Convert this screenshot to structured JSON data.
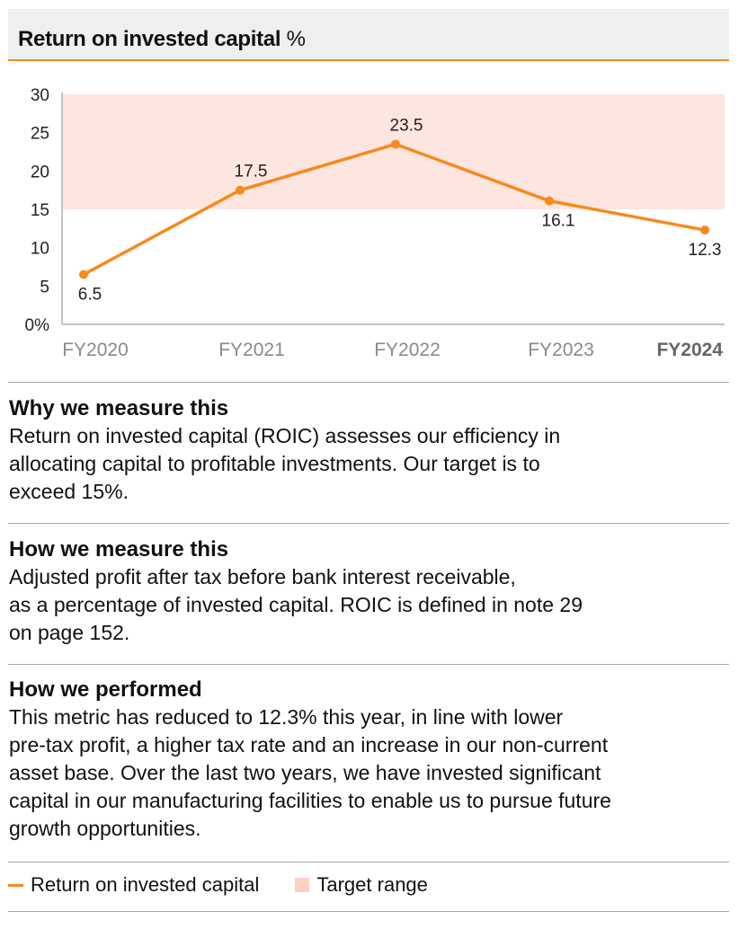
{
  "header": {
    "title": "Return on invested capital",
    "unit": "%"
  },
  "chart_data": {
    "type": "line",
    "title": "Return on invested capital %",
    "categories": [
      "FY2020",
      "FY2021",
      "FY2022",
      "FY2023",
      "FY2024"
    ],
    "highlight_category": "FY2024",
    "series": [
      {
        "name": "Return on invested capital",
        "values": [
          6.5,
          17.5,
          23.5,
          16.1,
          12.3
        ],
        "labels": [
          "6.5",
          "17.5",
          "23.5",
          "16.1",
          "12.3"
        ]
      }
    ],
    "target_range": [
      15,
      30
    ],
    "ylim": [
      0,
      30
    ],
    "yticks": [
      0,
      5,
      10,
      15,
      20,
      25,
      30
    ],
    "ytick_labels": [
      "0%",
      "5",
      "10",
      "15",
      "20",
      "25",
      "30"
    ],
    "xlabel": "",
    "ylabel": "",
    "colors": {
      "line": "#f7891f",
      "target": "#fde6df",
      "axis": "#b0b0b0",
      "xtick": "#8a8a8a"
    }
  },
  "sections": [
    {
      "heading": "Why we measure this",
      "lines": [
        "Return on invested capital (ROIC) assesses our efficiency in",
        "allocating capital to profitable investments. Our target is to",
        "exceed 15%."
      ]
    },
    {
      "heading": "How we measure this",
      "lines": [
        "Adjusted profit after tax before bank interest receivable,",
        "as a percentage of invested capital. ROIC is defined in note 29",
        "on page 152."
      ]
    },
    {
      "heading": "How we performed",
      "lines": [
        "This metric has reduced to 12.3% this year, in line with lower",
        "pre-tax profit, a higher tax rate and an increase in our non-current",
        "asset base. Over the last two years, we have invested significant",
        "capital in our manufacturing facilities to enable us to pursue future",
        "growth opportunities."
      ]
    }
  ],
  "legend": {
    "line": "Return on invested capital",
    "target": "Target range"
  }
}
